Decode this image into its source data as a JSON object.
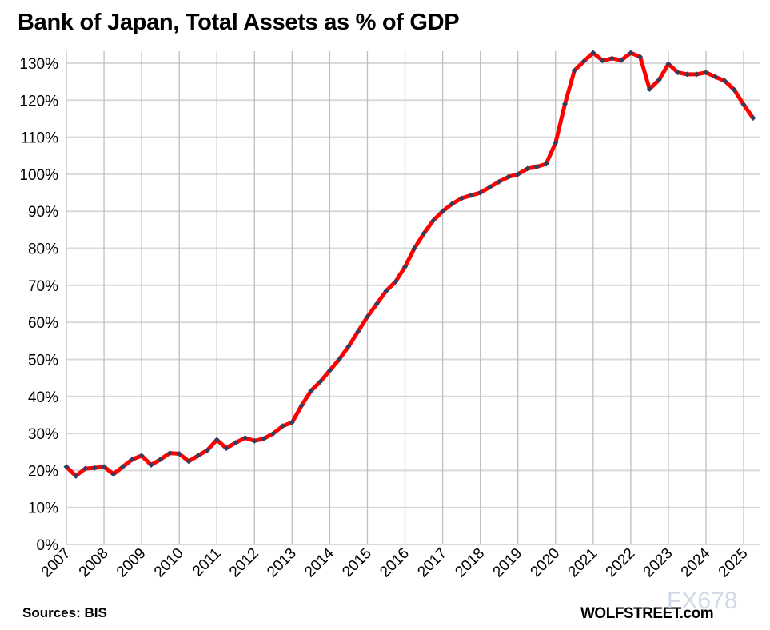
{
  "chart_data": {
    "type": "line",
    "title": "Bank of Japan, Total Assets as % of GDP",
    "xlabel": "",
    "ylabel": "",
    "ylim": [
      0,
      130
    ],
    "y_ticks": [
      "0%",
      "10%",
      "20%",
      "30%",
      "40%",
      "50%",
      "60%",
      "70%",
      "80%",
      "90%",
      "100%",
      "110%",
      "120%",
      "130%"
    ],
    "x_ticks": [
      "2007",
      "2008",
      "2009",
      "2010",
      "2011",
      "2012",
      "2013",
      "2014",
      "2015",
      "2016",
      "2017",
      "2018",
      "2019",
      "2020",
      "2021",
      "2022",
      "2023",
      "2024",
      "2025"
    ],
    "grid": true,
    "frequency": "quarterly",
    "start": "2007 Q1",
    "line_color": "#ff0000",
    "marker_color": "#2e4060",
    "values": [
      21,
      18.5,
      20.5,
      20.7,
      21,
      19,
      21,
      23,
      24,
      21.5,
      23,
      24.7,
      24.5,
      22.5,
      24,
      25.5,
      28.3,
      26,
      27.5,
      28.8,
      28,
      28.6,
      30,
      32,
      33,
      37.5,
      41.5,
      44,
      47,
      50,
      53.5,
      57.5,
      61.5,
      65,
      68.5,
      71,
      75,
      80,
      84,
      87.5,
      90,
      92,
      93.5,
      94.3,
      95,
      96.5,
      98,
      99.3,
      100,
      101.5,
      102,
      102.8,
      108.5,
      119,
      128,
      130.5,
      132.8,
      130.7,
      131.3,
      130.8,
      132.8,
      131.7,
      123,
      125.5,
      129.8,
      127.5,
      127,
      127,
      127.5,
      126.3,
      125.2,
      122.8,
      118.8,
      115.2
    ]
  },
  "footer": {
    "source": "Sources: BIS",
    "brand": "WOLFSTREET.com",
    "watermark": "FX678"
  }
}
